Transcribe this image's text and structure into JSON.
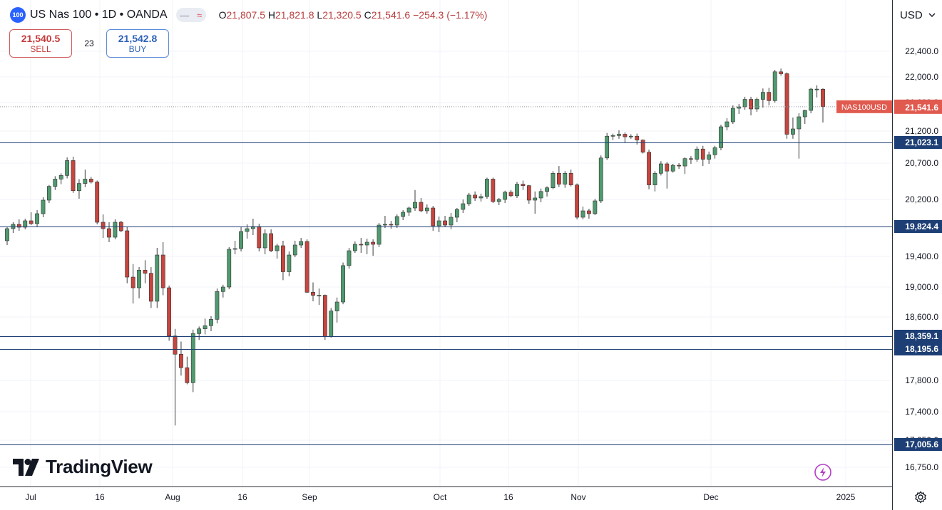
{
  "header": {
    "symbol_badge": "100",
    "title": "US Nas 100 • 1D • OANDA",
    "ohlc": {
      "o_label": "O",
      "o": "21,807.5",
      "h_label": "H",
      "h": "21,821.8",
      "l_label": "L",
      "l": "21,320.5",
      "c_label": "C",
      "c": "21,541.6",
      "change": "−254.3 (−1.17%)"
    }
  },
  "trade": {
    "sell_price": "21,540.5",
    "sell_label": "SELL",
    "spread": "23",
    "buy_price": "21,542.8",
    "buy_label": "BUY"
  },
  "currency": "USD",
  "brand": "TradingView",
  "colors": {
    "up": "#4f9a6e",
    "down": "#c8453e",
    "level_line": "#1e3f75",
    "badge": "#1e3f75",
    "last_price": "#e05a4f"
  },
  "chart_data": {
    "type": "candlestick",
    "x_ticks": [
      "Jul",
      "16",
      "Aug",
      "16",
      "Sep",
      "Oct",
      "16",
      "Nov",
      "Dec",
      "2025"
    ],
    "y_ticks": [
      "22,400.0",
      "22,000.0",
      "21,600.0",
      "21,200.0",
      "20,700.0",
      "20,200.0",
      "19,400.0",
      "19,000.0",
      "18,600.0",
      "17,800.0",
      "17,400.0",
      "17,050.0",
      "16,750.0"
    ],
    "levels": [
      {
        "value": 21023.1,
        "label": "21,023.1"
      },
      {
        "value": 19824.4,
        "label": "19,824.4"
      },
      {
        "value": 18359.1,
        "label": "18,359.1"
      },
      {
        "value": 18195.6,
        "label": "18,195.6"
      },
      {
        "value": 17005.6,
        "label": "17,005.6"
      }
    ],
    "last_price": {
      "symbol": "NAS100USD",
      "value": 21541.6,
      "label": "21,541.6"
    },
    "candles": [
      [
        19620,
        19810,
        19560,
        19790
      ],
      [
        19790,
        19880,
        19730,
        19850
      ],
      [
        19850,
        19920,
        19760,
        19810
      ],
      [
        19810,
        19930,
        19780,
        19900
      ],
      [
        19900,
        20020,
        19840,
        19860
      ],
      [
        19860,
        20050,
        19810,
        20000
      ],
      [
        20000,
        20230,
        19950,
        20190
      ],
      [
        20190,
        20400,
        20150,
        20380
      ],
      [
        20380,
        20520,
        20330,
        20480
      ],
      [
        20480,
        20560,
        20410,
        20530
      ],
      [
        20530,
        20790,
        20490,
        20740
      ],
      [
        20740,
        20800,
        20290,
        20320
      ],
      [
        20320,
        20480,
        20210,
        20420
      ],
      [
        20420,
        20610,
        20370,
        20480
      ],
      [
        20480,
        20510,
        20420,
        20440
      ],
      [
        20440,
        20460,
        19850,
        19880
      ],
      [
        19880,
        19990,
        19660,
        19790
      ],
      [
        19790,
        19880,
        19600,
        19670
      ],
      [
        19670,
        19920,
        19640,
        19880
      ],
      [
        19880,
        19900,
        19740,
        19760
      ],
      [
        19760,
        19810,
        19050,
        19130
      ],
      [
        19130,
        19300,
        18780,
        18990
      ],
      [
        18990,
        19260,
        18850,
        19220
      ],
      [
        19220,
        19350,
        19050,
        19180
      ],
      [
        19180,
        19260,
        18720,
        18810
      ],
      [
        18810,
        19520,
        18720,
        19420
      ],
      [
        19420,
        19600,
        18890,
        18990
      ],
      [
        18990,
        19020,
        18300,
        18360
      ],
      [
        18360,
        18450,
        17230,
        18130
      ],
      [
        18130,
        18290,
        17860,
        17960
      ],
      [
        17960,
        18100,
        17750,
        17770
      ],
      [
        17770,
        18440,
        17650,
        18390
      ],
      [
        18390,
        18480,
        18310,
        18450
      ],
      [
        18450,
        18580,
        18380,
        18490
      ],
      [
        18490,
        18610,
        18420,
        18570
      ],
      [
        18570,
        18980,
        18520,
        18940
      ],
      [
        18940,
        19030,
        18860,
        19000
      ],
      [
        19000,
        19530,
        18970,
        19500
      ],
      [
        19500,
        19620,
        19430,
        19510
      ],
      [
        19510,
        19810,
        19470,
        19750
      ],
      [
        19750,
        19850,
        19650,
        19790
      ],
      [
        19790,
        19930,
        19700,
        19820
      ],
      [
        19820,
        19860,
        19470,
        19520
      ],
      [
        19520,
        19780,
        19430,
        19720
      ],
      [
        19720,
        19780,
        19460,
        19480
      ],
      [
        19480,
        19580,
        19370,
        19550
      ],
      [
        19550,
        19620,
        19090,
        19200
      ],
      [
        19200,
        19470,
        19140,
        19420
      ],
      [
        19420,
        19620,
        19390,
        19560
      ],
      [
        19560,
        19660,
        19520,
        19610
      ],
      [
        19610,
        19640,
        18920,
        18930
      ],
      [
        18930,
        19060,
        18810,
        18890
      ],
      [
        18890,
        18980,
        18760,
        18890
      ],
      [
        18890,
        18900,
        18310,
        18350
      ],
      [
        18350,
        18720,
        18340,
        18680
      ],
      [
        18680,
        18860,
        18530,
        18800
      ],
      [
        18800,
        19320,
        18770,
        19280
      ],
      [
        19280,
        19520,
        19240,
        19480
      ],
      [
        19480,
        19610,
        19450,
        19570
      ],
      [
        19570,
        19660,
        19450,
        19560
      ],
      [
        19560,
        19650,
        19430,
        19600
      ],
      [
        19600,
        19640,
        19410,
        19570
      ],
      [
        19570,
        19870,
        19530,
        19840
      ],
      [
        19840,
        19970,
        19800,
        19850
      ],
      [
        19850,
        19900,
        19790,
        19840
      ],
      [
        19840,
        19990,
        19800,
        19960
      ],
      [
        19960,
        20050,
        19910,
        20020
      ],
      [
        20020,
        20100,
        19970,
        20080
      ],
      [
        20080,
        20330,
        20040,
        20160
      ],
      [
        20160,
        20220,
        20020,
        20040
      ],
      [
        20040,
        20130,
        20000,
        20080
      ],
      [
        20080,
        20110,
        19760,
        19830
      ],
      [
        19830,
        19960,
        19740,
        19900
      ],
      [
        19900,
        19970,
        19820,
        19840
      ],
      [
        19840,
        20010,
        19780,
        19950
      ],
      [
        19950,
        20080,
        19880,
        20060
      ],
      [
        20060,
        20200,
        20010,
        20140
      ],
      [
        20140,
        20290,
        20110,
        20260
      ],
      [
        20260,
        20310,
        20180,
        20220
      ],
      [
        20220,
        20280,
        20170,
        20240
      ],
      [
        20240,
        20500,
        20210,
        20480
      ],
      [
        20480,
        20500,
        20150,
        20170
      ],
      [
        20170,
        20220,
        20120,
        20200
      ],
      [
        20200,
        20320,
        20150,
        20300
      ],
      [
        20300,
        20330,
        20230,
        20250
      ],
      [
        20250,
        20440,
        20220,
        20410
      ],
      [
        20410,
        20460,
        20330,
        20390
      ],
      [
        20390,
        20400,
        20140,
        20190
      ],
      [
        20190,
        20310,
        20000,
        20220
      ],
      [
        20220,
        20350,
        20160,
        20310
      ],
      [
        20310,
        20380,
        20240,
        20360
      ],
      [
        20360,
        20590,
        20340,
        20560
      ],
      [
        20560,
        20660,
        20370,
        20410
      ],
      [
        20410,
        20590,
        20360,
        20560
      ],
      [
        20560,
        20610,
        20380,
        20400
      ],
      [
        20400,
        20420,
        19920,
        19950
      ],
      [
        19950,
        20100,
        19920,
        20040
      ],
      [
        20040,
        20070,
        19930,
        20000
      ],
      [
        20000,
        20210,
        19980,
        20180
      ],
      [
        20180,
        20820,
        20150,
        20780
      ],
      [
        20780,
        21170,
        20750,
        21120
      ],
      [
        21120,
        21160,
        21060,
        21130
      ],
      [
        21130,
        21210,
        21080,
        21150
      ],
      [
        21150,
        21180,
        21020,
        21110
      ],
      [
        21110,
        21150,
        21080,
        21120
      ],
      [
        21120,
        21160,
        20990,
        21060
      ],
      [
        21060,
        21070,
        20850,
        20870
      ],
      [
        20870,
        20910,
        20340,
        20400
      ],
      [
        20400,
        20590,
        20310,
        20560
      ],
      [
        20560,
        20730,
        20530,
        20690
      ],
      [
        20690,
        20720,
        20350,
        20590
      ],
      [
        20590,
        20690,
        20570,
        20670
      ],
      [
        20670,
        20700,
        20620,
        20660
      ],
      [
        20660,
        20790,
        20550,
        20770
      ],
      [
        20770,
        20810,
        20690,
        20760
      ],
      [
        20760,
        20960,
        20720,
        20920
      ],
      [
        20920,
        20970,
        20660,
        20760
      ],
      [
        20760,
        20880,
        20690,
        20830
      ],
      [
        20830,
        20970,
        20770,
        20940
      ],
      [
        20940,
        21290,
        20900,
        21260
      ],
      [
        21260,
        21380,
        21210,
        21330
      ],
      [
        21330,
        21560,
        21300,
        21520
      ],
      [
        21520,
        21580,
        21440,
        21540
      ],
      [
        21540,
        21690,
        21500,
        21650
      ],
      [
        21650,
        21690,
        21420,
        21510
      ],
      [
        21510,
        21680,
        21470,
        21650
      ],
      [
        21650,
        21820,
        21530,
        21760
      ],
      [
        21760,
        21830,
        21560,
        21630
      ],
      [
        21630,
        22110,
        21600,
        22080
      ],
      [
        22080,
        22130,
        22020,
        22050
      ],
      [
        22050,
        22070,
        21080,
        21150
      ],
      [
        21150,
        21390,
        21080,
        21230
      ],
      [
        21230,
        21450,
        20770,
        21400
      ],
      [
        21400,
        21500,
        21300,
        21490
      ],
      [
        21490,
        21830,
        21450,
        21810
      ],
      [
        21810,
        21870,
        21680,
        21810
      ],
      [
        21807.5,
        21821.8,
        21320.5,
        21541.6
      ]
    ]
  }
}
